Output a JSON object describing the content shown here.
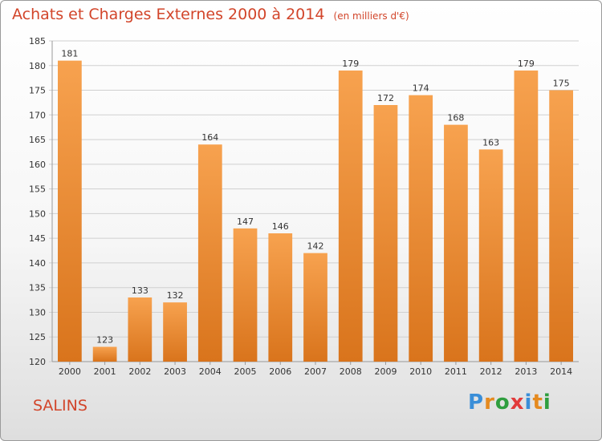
{
  "title": "Achats et Charges Externes 2000 à 2014",
  "unit_note": "(en milliers d'€)",
  "commune": "SALINS",
  "brand": {
    "letters": [
      {
        "ch": "P",
        "color": "#3a8ed8"
      },
      {
        "ch": "r",
        "color": "#e58a1f"
      },
      {
        "ch": "o",
        "color": "#2f9e3f"
      },
      {
        "ch": "x",
        "color": "#e23b3b"
      },
      {
        "ch": "i",
        "color": "#3a8ed8"
      },
      {
        "ch": "t",
        "color": "#e58a1f"
      },
      {
        "ch": "i",
        "color": "#2f9e3f"
      }
    ]
  },
  "colors": {
    "bar_light": "#f7a24f",
    "bar_dark": "#d9741c",
    "accent": "#d2452a"
  },
  "chart_data": {
    "type": "bar",
    "categories": [
      "2000",
      "2001",
      "2002",
      "2003",
      "2004",
      "2005",
      "2006",
      "2007",
      "2008",
      "2009",
      "2010",
      "2011",
      "2012",
      "2013",
      "2014"
    ],
    "values": [
      181,
      123,
      133,
      132,
      164,
      147,
      146,
      142,
      179,
      172,
      174,
      168,
      163,
      179,
      175
    ],
    "ylim": [
      120,
      185
    ],
    "yticks": [
      120,
      125,
      130,
      135,
      140,
      145,
      150,
      155,
      160,
      165,
      170,
      175,
      180,
      185
    ],
    "grid": true,
    "legend": "none"
  }
}
